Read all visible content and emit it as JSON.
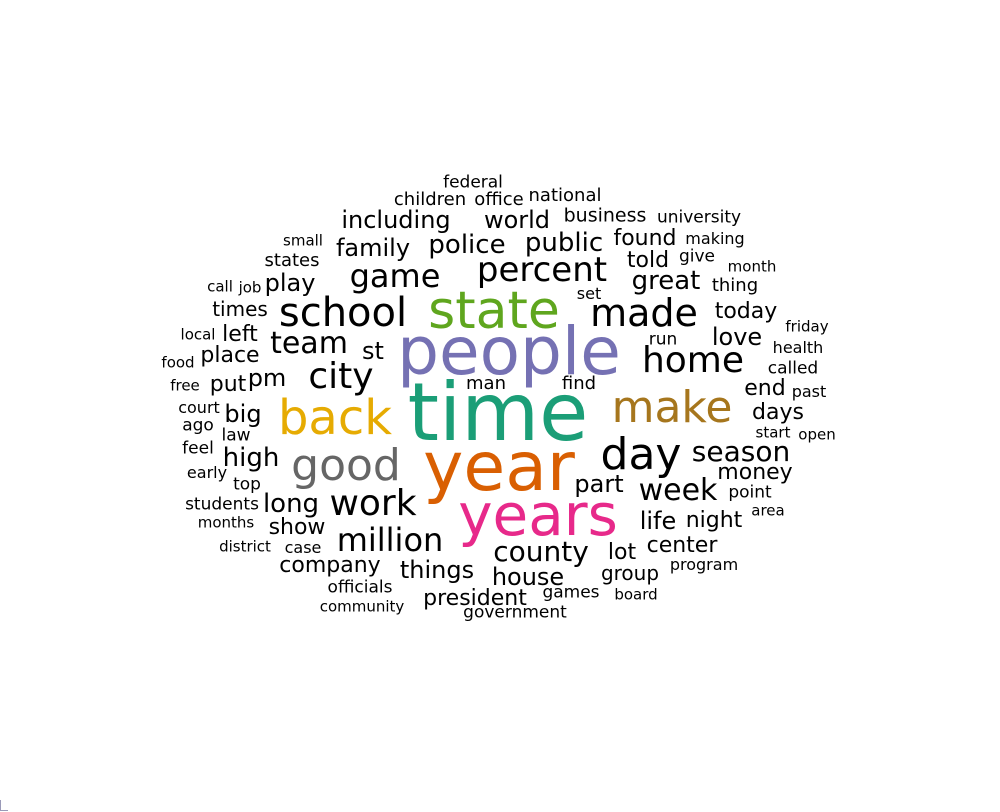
{
  "colors": {
    "default": "#000000",
    "purple": "#7571b3",
    "teal": "#1b9e77",
    "orange": "#d95f02",
    "green": "#5fa61e",
    "magenta": "#e7298a",
    "gold": "#e6ab02",
    "gray": "#666666",
    "bronze": "#a6761d"
  },
  "words": [
    {
      "text": "people",
      "c": "purple"
    },
    {
      "text": "time",
      "c": "teal"
    },
    {
      "text": "year",
      "c": "orange"
    },
    {
      "text": "state",
      "c": "green"
    },
    {
      "text": "years",
      "c": "magenta"
    },
    {
      "text": "back",
      "c": "gold"
    },
    {
      "text": "good",
      "c": "gray"
    },
    {
      "text": "make",
      "c": "bronze"
    },
    {
      "text": "day"
    },
    {
      "text": "school"
    },
    {
      "text": "made"
    },
    {
      "text": "percent"
    },
    {
      "text": "game"
    },
    {
      "text": "home"
    },
    {
      "text": "city"
    },
    {
      "text": "work"
    },
    {
      "text": "million"
    },
    {
      "text": "week"
    },
    {
      "text": "season"
    },
    {
      "text": "county"
    },
    {
      "text": "team"
    },
    {
      "text": "police"
    },
    {
      "text": "public"
    },
    {
      "text": "family"
    },
    {
      "text": "great"
    },
    {
      "text": "world"
    },
    {
      "text": "including"
    },
    {
      "text": "house"
    },
    {
      "text": "things"
    },
    {
      "text": "company"
    },
    {
      "text": "president"
    },
    {
      "text": "part"
    },
    {
      "text": "life"
    },
    {
      "text": "night"
    },
    {
      "text": "high"
    },
    {
      "text": "long"
    },
    {
      "text": "show"
    },
    {
      "text": "big"
    },
    {
      "text": "pm"
    },
    {
      "text": "put"
    },
    {
      "text": "place"
    },
    {
      "text": "st"
    },
    {
      "text": "love"
    },
    {
      "text": "today"
    },
    {
      "text": "days"
    },
    {
      "text": "end"
    },
    {
      "text": "told"
    },
    {
      "text": "found"
    },
    {
      "text": "play"
    },
    {
      "text": "lot"
    },
    {
      "text": "center"
    },
    {
      "text": "group"
    },
    {
      "text": "money"
    },
    {
      "text": "left"
    },
    {
      "text": "times"
    },
    {
      "text": "business"
    },
    {
      "text": "national"
    },
    {
      "text": "office"
    },
    {
      "text": "children"
    },
    {
      "text": "federal"
    },
    {
      "text": "university"
    },
    {
      "text": "making"
    },
    {
      "text": "give"
    },
    {
      "text": "thing"
    },
    {
      "text": "month"
    },
    {
      "text": "friday"
    },
    {
      "text": "health"
    },
    {
      "text": "called"
    },
    {
      "text": "past"
    },
    {
      "text": "start"
    },
    {
      "text": "open"
    },
    {
      "text": "point"
    },
    {
      "text": "area"
    },
    {
      "text": "program"
    },
    {
      "text": "board"
    },
    {
      "text": "games"
    },
    {
      "text": "government"
    },
    {
      "text": "community"
    },
    {
      "text": "officials"
    },
    {
      "text": "case"
    },
    {
      "text": "district"
    },
    {
      "text": "months"
    },
    {
      "text": "students"
    },
    {
      "text": "top"
    },
    {
      "text": "early"
    },
    {
      "text": "feel"
    },
    {
      "text": "ago"
    },
    {
      "text": "court"
    },
    {
      "text": "free"
    },
    {
      "text": "food"
    },
    {
      "text": "local"
    },
    {
      "text": "call"
    },
    {
      "text": "job"
    },
    {
      "text": "small"
    },
    {
      "text": "states"
    },
    {
      "text": "set"
    },
    {
      "text": "run"
    },
    {
      "text": "man"
    },
    {
      "text": "find"
    },
    {
      "text": "law"
    }
  ]
}
